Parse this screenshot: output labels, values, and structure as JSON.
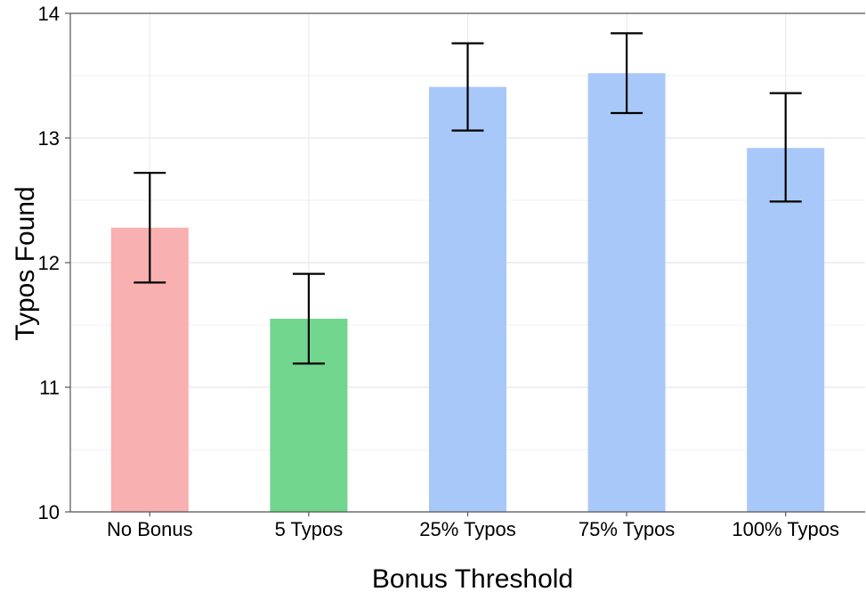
{
  "chart_data": {
    "type": "bar",
    "title": "",
    "xlabel": "Bonus Threshold",
    "ylabel": "Typos Found",
    "categories": [
      "No Bonus",
      "5 Typos",
      "25% Typos",
      "75% Typos",
      "100% Typos"
    ],
    "values": [
      12.28,
      11.55,
      13.41,
      13.52,
      12.92
    ],
    "error_low": [
      11.84,
      11.19,
      13.06,
      13.2,
      12.49
    ],
    "error_high": [
      12.72,
      11.91,
      13.76,
      13.84,
      13.36
    ],
    "bar_colors": [
      "#f8b0b0",
      "#72d68e",
      "#a9c8fa",
      "#a9c8fa",
      "#a9c8fa"
    ],
    "ylim": [
      10,
      14
    ],
    "yticks": [
      "10",
      "11",
      "12",
      "13",
      "14"
    ],
    "grid": true,
    "legend": "none"
  }
}
